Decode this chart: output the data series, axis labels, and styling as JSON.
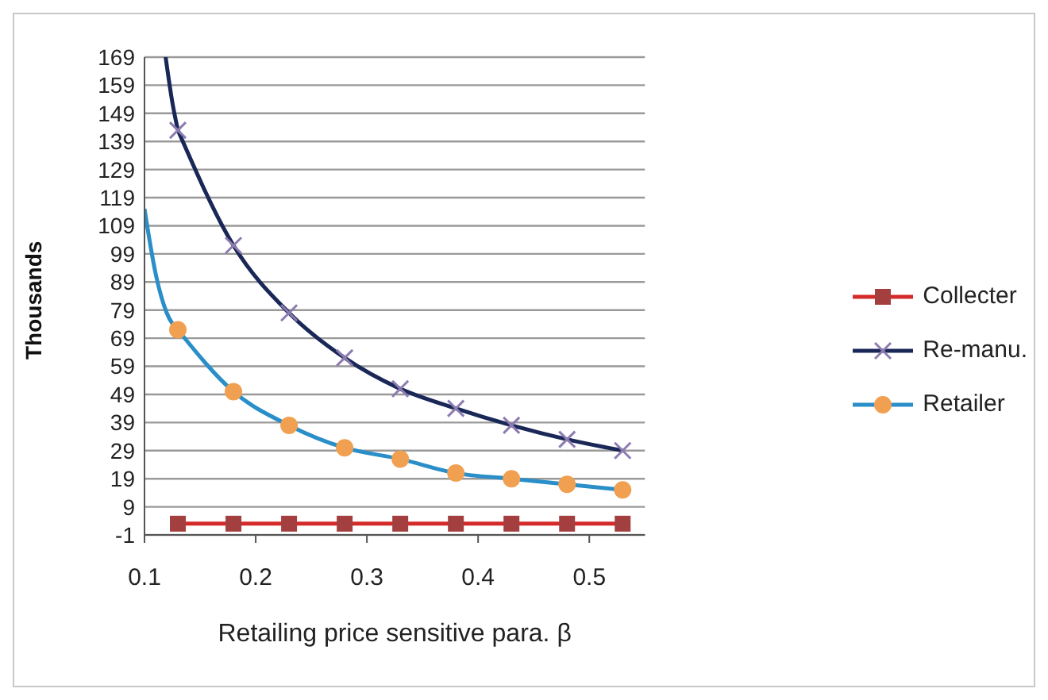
{
  "chart_data": {
    "type": "line",
    "xlabel": "Retailing price sensitive para.  β",
    "ylabel": "Thousands",
    "xlim": [
      0.1,
      0.55
    ],
    "xticks": [
      0.1,
      0.2,
      0.3,
      0.4,
      0.5
    ],
    "ylim": [
      -1,
      169
    ],
    "yticks": [
      -1,
      9,
      19,
      29,
      39,
      49,
      59,
      69,
      79,
      89,
      99,
      109,
      119,
      129,
      139,
      149,
      159,
      169
    ],
    "grid": "y",
    "legend": "right",
    "series": [
      {
        "name": "Collecter",
        "color": "#d42a2a",
        "colors": [
          "#a3403f",
          "#a3403f",
          "#a3403f",
          "#a3403f",
          "#a3403f",
          "#a3403f",
          "#a3403f",
          "#a3403f",
          "#a3403f"
        ],
        "marker": "square",
        "x": [
          0.13,
          0.18,
          0.23,
          0.28,
          0.33,
          0.38,
          0.43,
          0.48,
          0.53
        ],
        "values": [
          3,
          3,
          3,
          3,
          3,
          3,
          3,
          3,
          3
        ]
      },
      {
        "name": "Re-manu.",
        "color": "#1a2858",
        "colors": [
          "#8c7cb0",
          "#8c7cb0",
          "#8c7cb0",
          "#8c7cb0",
          "#8c7cb0",
          "#8c7cb0",
          "#8c7cb0",
          "#8c7cb0",
          "#8c7cb0"
        ],
        "marker": "cross",
        "x": [
          0.13,
          0.18,
          0.23,
          0.28,
          0.33,
          0.38,
          0.43,
          0.48,
          0.53
        ],
        "values": [
          143,
          102,
          78,
          62,
          51,
          44,
          38,
          33,
          29
        ]
      },
      {
        "name": "Retailer",
        "color": "#2a8ec8",
        "colors": [
          "#f0a050",
          "#f0a050",
          "#f0a050",
          "#f0a050",
          "#f0a050",
          "#f0a050",
          "#f0a050",
          "#f0a050",
          "#f0a050"
        ],
        "marker": "circle",
        "x": [
          0.13,
          0.18,
          0.23,
          0.28,
          0.33,
          0.38,
          0.43,
          0.48,
          0.53
        ],
        "values": [
          72,
          50,
          38,
          30,
          26,
          21,
          19,
          17,
          15
        ]
      },
      {
        "color": "#1a2858",
        "marker": "none",
        "x": [
          0.119,
          0.125,
          0.13
        ],
        "values": [
          169,
          153,
          143
        ]
      },
      {
        "color": "#2a8ec8",
        "marker": "none",
        "x": [
          0.1,
          0.11,
          0.12,
          0.13
        ],
        "values": [
          115,
          92,
          78,
          72
        ]
      }
    ]
  }
}
